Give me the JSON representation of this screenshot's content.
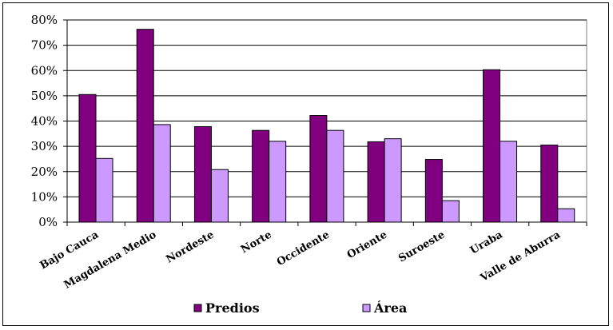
{
  "chart_data": {
    "type": "bar",
    "categories": [
      "Bajo Cauca",
      "Magdalena Medio",
      "Nordeste",
      "Norte",
      "Occidente",
      "Oriente",
      "Suroeste",
      "Uraba",
      "Valle de Aburra"
    ],
    "series": [
      {
        "name": "Predios",
        "color": "#800080",
        "values": [
          0.505,
          0.763,
          0.378,
          0.363,
          0.422,
          0.318,
          0.248,
          0.603,
          0.305
        ]
      },
      {
        "name": "Área",
        "color": "#cc99ff",
        "values": [
          0.252,
          0.386,
          0.208,
          0.32,
          0.363,
          0.33,
          0.085,
          0.32,
          0.053
        ]
      }
    ],
    "ylim": [
      0,
      0.8
    ],
    "ytick_values": [
      0,
      0.1,
      0.2,
      0.3,
      0.4,
      0.5,
      0.6,
      0.7,
      0.8
    ],
    "ytick_labels": [
      "0%",
      "10%",
      "20%",
      "30%",
      "40%",
      "50%",
      "60%",
      "70%",
      "80%"
    ],
    "grid": true,
    "legend_position": "bottom",
    "title": "",
    "xlabel": "",
    "ylabel": ""
  }
}
